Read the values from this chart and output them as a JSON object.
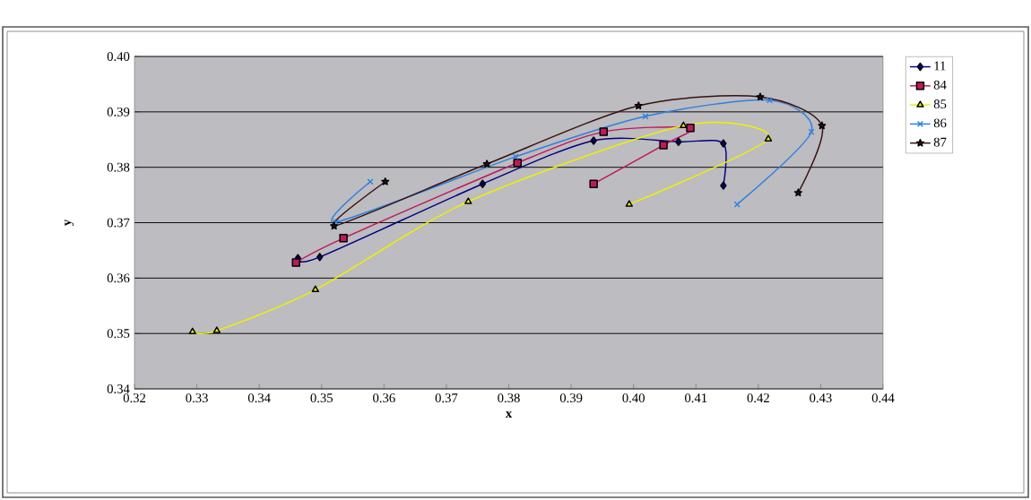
{
  "chart_data": {
    "type": "line",
    "xlabel": "x",
    "ylabel": "y",
    "xlim": [
      0.32,
      0.44
    ],
    "ylim": [
      0.34,
      0.4
    ],
    "xticks": [
      0.32,
      0.33,
      0.34,
      0.35,
      0.36,
      0.37,
      0.38,
      0.39,
      {
        "value": 0.4,
        "label": "0.40"
      },
      0.41,
      0.42,
      0.43,
      0.44
    ],
    "yticks": [
      0.34,
      0.35,
      0.36,
      0.37,
      0.38,
      0.39,
      {
        "value": 0.4,
        "label": "0.40"
      }
    ],
    "grid": "y",
    "legend": "right",
    "series": [
      {
        "name": "11",
        "color": "#000080",
        "marker": "diamond",
        "x": [
          0.3462,
          0.3497,
          0.3758,
          0.3936,
          0.4072,
          0.4144,
          0.4144
        ],
        "values": [
          0.3636,
          0.3638,
          0.377,
          0.3848,
          0.3846,
          0.3843,
          0.3767
        ]
      },
      {
        "name": "84",
        "color": "#c0185a",
        "marker": "square",
        "x": [
          0.3459,
          0.3535,
          0.3814,
          0.3952,
          0.4091,
          0.4048,
          0.3936
        ],
        "values": [
          0.3628,
          0.3672,
          0.3808,
          0.3864,
          0.3871,
          0.384,
          0.377
        ]
      },
      {
        "name": "85",
        "color": "#f0f000",
        "marker": "triangle",
        "x": [
          0.3293,
          0.3332,
          0.349,
          0.3735,
          0.408,
          0.4216,
          0.3993
        ],
        "values": [
          0.3503,
          0.3505,
          0.3579,
          0.3738,
          0.3875,
          0.3851,
          0.3733
        ]
      },
      {
        "name": "86",
        "color": "#2f7fe0",
        "marker": "cross",
        "x": [
          0.3578,
          0.3523,
          0.3811,
          0.4019,
          0.4218,
          0.4285,
          0.4166
        ],
        "values": [
          0.3774,
          0.3701,
          0.3819,
          0.3892,
          0.3921,
          0.3864,
          0.3733
        ]
      },
      {
        "name": "87",
        "color": "#3a1010",
        "marker": "star",
        "x": [
          0.3602,
          0.352,
          0.3765,
          0.4008,
          0.4203,
          0.4302,
          0.4264
        ],
        "values": [
          0.3774,
          0.3694,
          0.3806,
          0.3911,
          0.3927,
          0.3875,
          0.3754
        ]
      }
    ]
  }
}
